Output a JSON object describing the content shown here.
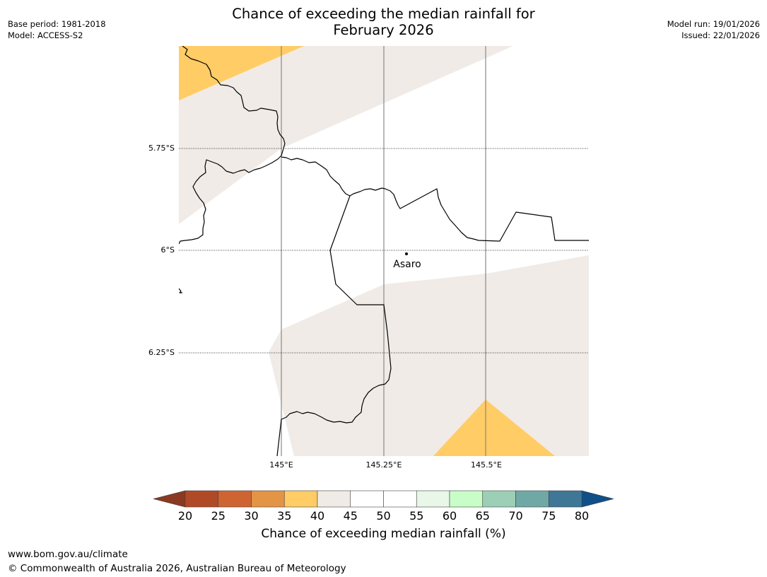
{
  "header": {
    "base_period": "Base period: 1981-2018",
    "model": "Model: ACCESS-S2",
    "title_line1": "Chance of exceeding the median rainfall for",
    "title_line2": "February 2026",
    "model_run": "Model run: 19/01/2026",
    "issued": "Issued: 22/01/2026"
  },
  "map": {
    "lon_labels": [
      "145°E",
      "145.25°E",
      "145.5°E"
    ],
    "lat_labels": [
      "5.75°S",
      "6°S",
      "6.25°S"
    ],
    "place": {
      "name": "Asaro"
    },
    "legend_colors": {
      "land": "#ffffff",
      "band_40_45": "#f0ebe6",
      "band_35_40": "#ffcc66",
      "border": "#000000",
      "meridian": "#888888"
    }
  },
  "colorbar": {
    "ticks": [
      "20",
      "25",
      "30",
      "35",
      "40",
      "45",
      "50",
      "55",
      "60",
      "65",
      "70",
      "75",
      "80"
    ],
    "under_color": "#8b3a22",
    "over_color": "#10508a",
    "colors": [
      "#b04a26",
      "#cf6433",
      "#e39444",
      "#ffcc66",
      "#f0ebe6",
      "#ffffff",
      "#ffffff",
      "#e8f7e8",
      "#c8fdc8",
      "#9ccfb6",
      "#70a8a6",
      "#3f7797"
    ],
    "title": "Chance of exceeding median rainfall (%)"
  },
  "footer": {
    "url": "www.bom.gov.au/climate",
    "copyright": "© Commonwealth of Australia 2026, Australian Bureau of Meteorology"
  }
}
